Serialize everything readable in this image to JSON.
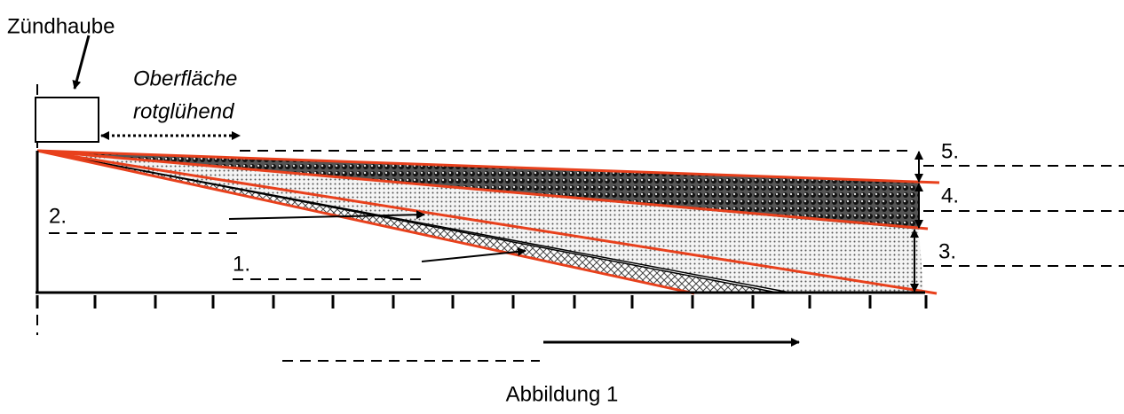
{
  "labels": {
    "ignition_cap": "Zündhaube",
    "surface_line1": "Oberfläche",
    "surface_line2": "rotglühend",
    "layer5": "5.",
    "layer4": "4.",
    "layer3": "3.",
    "layer2": "2.",
    "layer1": "1.",
    "caption": "Abbildung 1"
  }
}
